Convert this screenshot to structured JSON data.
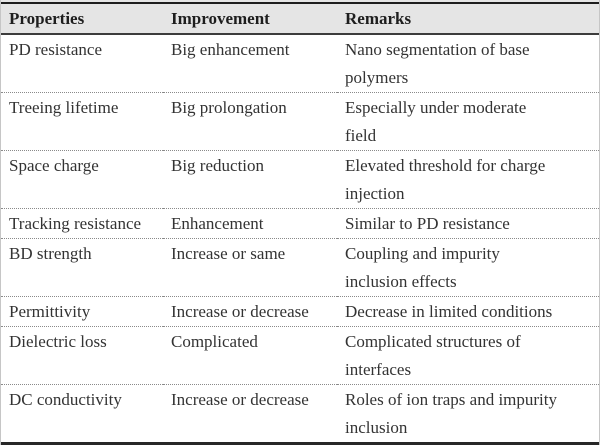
{
  "table": {
    "columns": [
      {
        "key": "property",
        "label": "Properties"
      },
      {
        "key": "improvement",
        "label": "Improvement"
      },
      {
        "key": "remarks",
        "label": "Remarks"
      }
    ],
    "rows": [
      {
        "property": "PD resistance",
        "improvement": "Big enhancement",
        "remarks": "Nano segmentation of base\npolymers"
      },
      {
        "property": "Treeing lifetime",
        "improvement": "Big prolongation",
        "remarks": "Especially under moderate\nfield"
      },
      {
        "property": "Space charge",
        "improvement": "Big reduction",
        "remarks": "Elevated threshold for charge\ninjection"
      },
      {
        "property": "Tracking resistance",
        "improvement": "Enhancement",
        "remarks": "Similar to PD resistance"
      },
      {
        "property": "BD strength",
        "improvement": "Increase or same",
        "remarks": "Coupling and impurity\ninclusion effects"
      },
      {
        "property": "Permittivity",
        "improvement": "Increase or decrease",
        "remarks": "Decrease in limited conditions"
      },
      {
        "property": "Dielectric loss",
        "improvement": "Complicated",
        "remarks": "Complicated structures of\ninterfaces"
      },
      {
        "property": "DC conductivity",
        "improvement": "Increase or decrease",
        "remarks": "Roles of ion traps and impurity\ninclusion"
      }
    ]
  },
  "colors": {
    "header_background": "#e5e5e5",
    "text": "#333333",
    "header_text": "#1e1e1e",
    "top_rule": "#1d1d1d",
    "header_rule": "#3c3c3c",
    "bottom_rule": "#272727",
    "row_separator": "#8a8a8a",
    "side_edge": "#c6c6c6"
  }
}
